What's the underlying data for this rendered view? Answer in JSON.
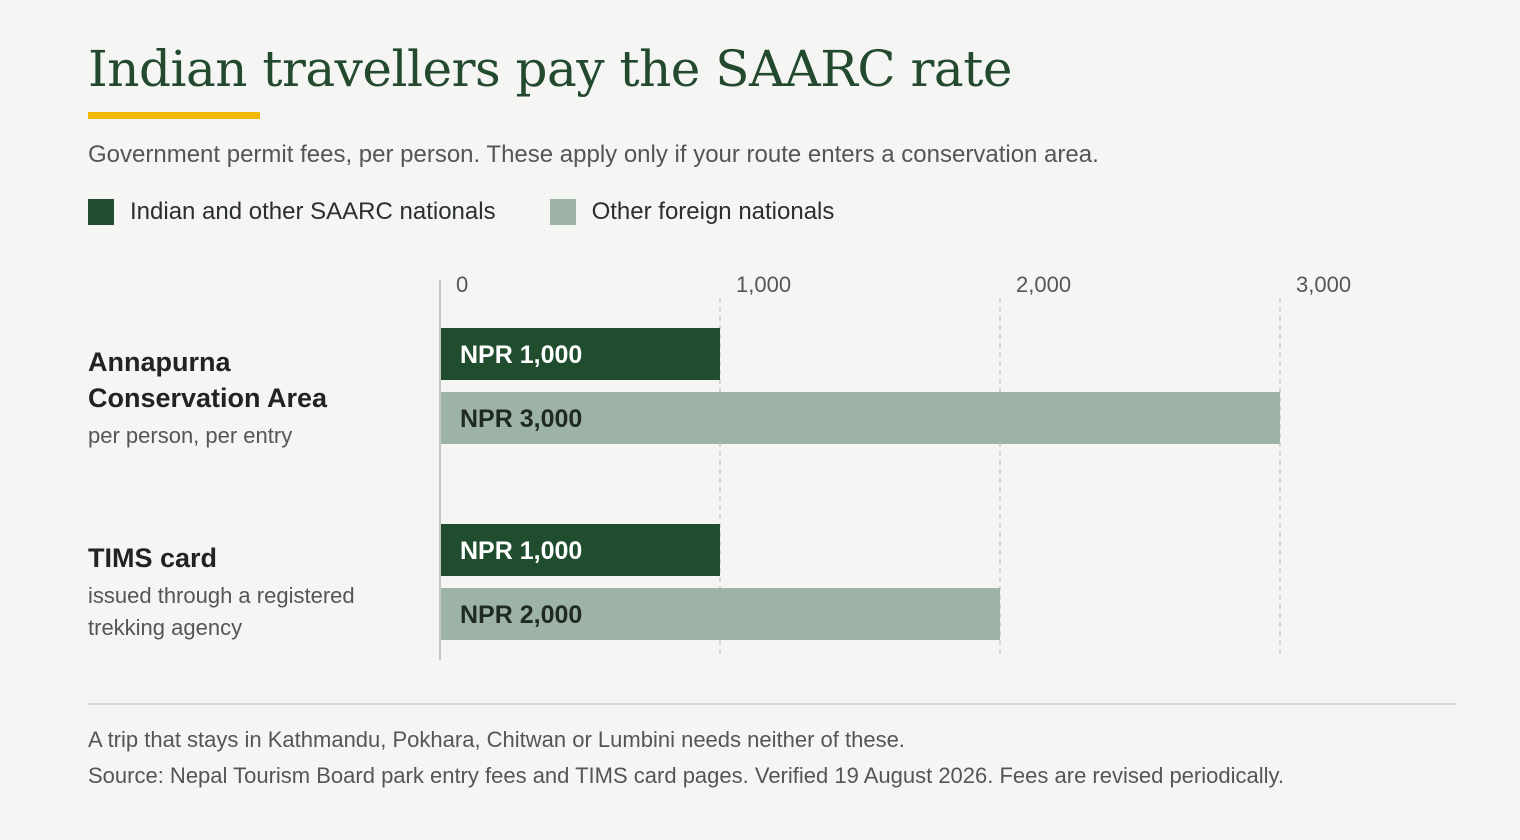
{
  "title": "Indian travellers pay the SAARC rate",
  "subtitle": "Government permit fees, per person. These apply only if your route enters a conservation area.",
  "legend": [
    {
      "label": "Indian and other SAARC nationals",
      "color": "#1f4d2e"
    },
    {
      "label": "Other foreign nationals",
      "color": "#9db3a5"
    }
  ],
  "rows": [
    {
      "name": "Annapurna Conservation Area",
      "note": "per person, per entry"
    },
    {
      "name": "TIMS card",
      "note": "issued through a registered trekking agency"
    }
  ],
  "chart_data": {
    "type": "bar",
    "orientation": "horizontal",
    "categories": [
      "Annapurna Conservation Area",
      "TIMS card"
    ],
    "series": [
      {
        "name": "Indian and other SAARC nationals",
        "values": [
          1000,
          1000
        ],
        "labels": [
          "NPR 1,000",
          "NPR 1,000"
        ],
        "color": "#1f4d2e",
        "label_color": "#ffffff"
      },
      {
        "name": "Other foreign nationals",
        "values": [
          3000,
          2000
        ],
        "labels": [
          "NPR 3,000",
          "NPR 2,000"
        ],
        "color": "#9db3a5",
        "label_color": "#1f2a22"
      }
    ],
    "ticks": [
      0,
      1000,
      2000,
      3000
    ],
    "tick_labels": [
      "0",
      "1,000",
      "2,000",
      "3,000"
    ],
    "xlim": [
      0,
      3000
    ],
    "grid": true
  },
  "footnote": "A trip that stays in Kathmandu, Pokhara, Chitwan or Lumbini needs neither of these.",
  "source": "Source: Nepal Tourism Board park entry fees and TIMS card pages. Verified 19 August 2026. Fees are revised periodically."
}
